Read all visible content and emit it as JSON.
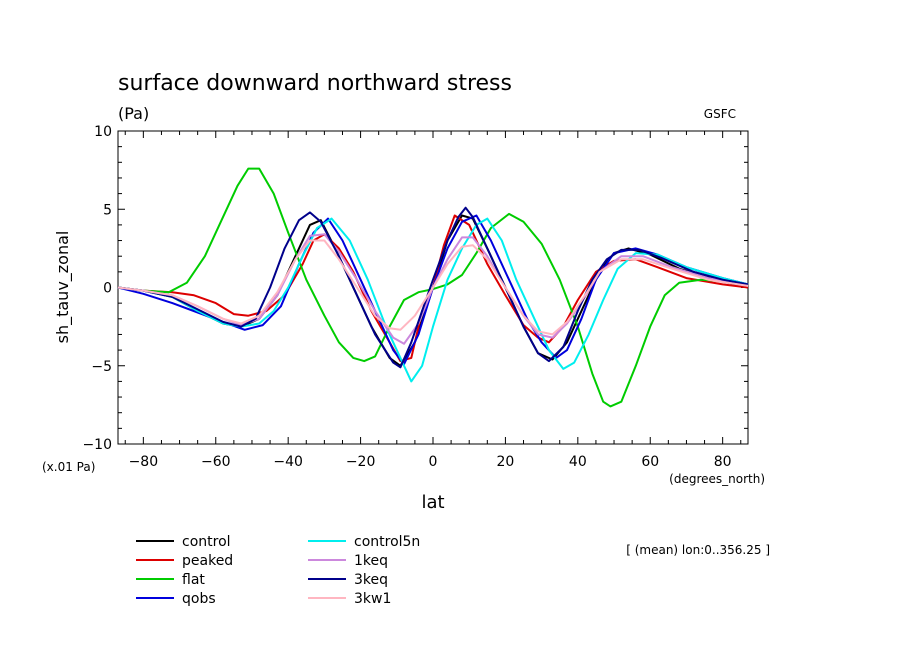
{
  "chart_data": {
    "type": "line",
    "title": "surface downward northward stress",
    "units": "(Pa)",
    "source": "GSFC",
    "ylabel": "sh_tauv_zonal",
    "xlabel": "lat",
    "y_scale_note": "(x.01 Pa)",
    "x_units": "(degrees_north)",
    "footnote": "[ (mean) lon:0..356.25 ]",
    "xlim": [
      -87,
      87
    ],
    "ylim": [
      -10,
      10
    ],
    "x_ticks": [
      -80,
      -60,
      -40,
      -20,
      0,
      20,
      40,
      60,
      80
    ],
    "x_tick_labels": [
      "−80",
      "−60",
      "−40",
      "−20",
      "0",
      "20",
      "40",
      "60",
      "80"
    ],
    "y_ticks": [
      -10,
      -5,
      0,
      5,
      10
    ],
    "y_tick_labels": [
      "−10",
      "−5",
      "0",
      "5",
      "10"
    ],
    "series": [
      {
        "name": "control",
        "color": "#000000",
        "points": [
          [
            -87,
            0
          ],
          [
            -80,
            -0.2
          ],
          [
            -72,
            -0.6
          ],
          [
            -65,
            -1.5
          ],
          [
            -58,
            -2.3
          ],
          [
            -53,
            -2.5
          ],
          [
            -48,
            -2.0
          ],
          [
            -43,
            -0.5
          ],
          [
            -38,
            2.0
          ],
          [
            -34,
            4.0
          ],
          [
            -31,
            4.3
          ],
          [
            -27,
            2.5
          ],
          [
            -22,
            0
          ],
          [
            -17,
            -2.5
          ],
          [
            -12,
            -4.5
          ],
          [
            -9,
            -5.0
          ],
          [
            -5,
            -3.5
          ],
          [
            0,
            0
          ],
          [
            4,
            3.0
          ],
          [
            8,
            4.6
          ],
          [
            11,
            4.4
          ],
          [
            15,
            2.5
          ],
          [
            20,
            0
          ],
          [
            25,
            -2.5
          ],
          [
            29,
            -4.2
          ],
          [
            33,
            -4.6
          ],
          [
            37,
            -3.5
          ],
          [
            42,
            -1.0
          ],
          [
            46,
            1.0
          ],
          [
            50,
            2.2
          ],
          [
            54,
            2.5
          ],
          [
            60,
            2.1
          ],
          [
            68,
            1.2
          ],
          [
            78,
            0.5
          ],
          [
            87,
            0
          ]
        ]
      },
      {
        "name": "peaked",
        "color": "#dd0000",
        "points": [
          [
            -87,
            0
          ],
          [
            -80,
            -0.2
          ],
          [
            -72,
            -0.3
          ],
          [
            -66,
            -0.5
          ],
          [
            -60,
            -1.0
          ],
          [
            -55,
            -1.7
          ],
          [
            -51,
            -1.8
          ],
          [
            -46,
            -1.5
          ],
          [
            -41,
            -0.5
          ],
          [
            -36,
            1.5
          ],
          [
            -33,
            3.0
          ],
          [
            -30,
            3.4
          ],
          [
            -26,
            2.5
          ],
          [
            -22,
            1.0
          ],
          [
            -17,
            -1.5
          ],
          [
            -12,
            -3.5
          ],
          [
            -9,
            -4.7
          ],
          [
            -6,
            -4.5
          ],
          [
            -3,
            -1.5
          ],
          [
            0,
            0
          ],
          [
            3,
            2.7
          ],
          [
            6,
            4.6
          ],
          [
            10,
            4.0
          ],
          [
            15,
            1.5
          ],
          [
            20,
            -0.5
          ],
          [
            25,
            -2.4
          ],
          [
            29,
            -3.2
          ],
          [
            32,
            -3.5
          ],
          [
            36,
            -2.5
          ],
          [
            40,
            -0.8
          ],
          [
            45,
            1.0
          ],
          [
            50,
            1.7
          ],
          [
            56,
            1.8
          ],
          [
            62,
            1.3
          ],
          [
            70,
            0.6
          ],
          [
            80,
            0.2
          ],
          [
            87,
            0
          ]
        ]
      },
      {
        "name": "flat",
        "color": "#00cc00",
        "points": [
          [
            -87,
            0
          ],
          [
            -80,
            -0.2
          ],
          [
            -73,
            -0.3
          ],
          [
            -68,
            0.3
          ],
          [
            -63,
            2.0
          ],
          [
            -58,
            4.5
          ],
          [
            -54,
            6.5
          ],
          [
            -51,
            7.6
          ],
          [
            -48,
            7.6
          ],
          [
            -44,
            6.0
          ],
          [
            -40,
            3.5
          ],
          [
            -35,
            0.5
          ],
          [
            -30,
            -1.8
          ],
          [
            -26,
            -3.5
          ],
          [
            -22,
            -4.5
          ],
          [
            -19,
            -4.7
          ],
          [
            -16,
            -4.4
          ],
          [
            -12,
            -2.5
          ],
          [
            -8,
            -0.8
          ],
          [
            -4,
            -0.3
          ],
          [
            0,
            -0.1
          ],
          [
            4,
            0.2
          ],
          [
            8,
            0.8
          ],
          [
            12,
            2.2
          ],
          [
            16,
            3.8
          ],
          [
            21,
            4.7
          ],
          [
            25,
            4.2
          ],
          [
            30,
            2.8
          ],
          [
            35,
            0.5
          ],
          [
            40,
            -2.5
          ],
          [
            44,
            -5.5
          ],
          [
            47,
            -7.3
          ],
          [
            49,
            -7.6
          ],
          [
            52,
            -7.3
          ],
          [
            56,
            -5.0
          ],
          [
            60,
            -2.5
          ],
          [
            64,
            -0.5
          ],
          [
            68,
            0.3
          ],
          [
            74,
            0.5
          ],
          [
            80,
            0.4
          ],
          [
            87,
            0.2
          ]
        ]
      },
      {
        "name": "qobs",
        "color": "#0000dd",
        "points": [
          [
            -87,
            0
          ],
          [
            -80,
            -0.4
          ],
          [
            -72,
            -1.0
          ],
          [
            -65,
            -1.6
          ],
          [
            -58,
            -2.2
          ],
          [
            -52,
            -2.7
          ],
          [
            -47,
            -2.4
          ],
          [
            -42,
            -1.2
          ],
          [
            -37,
            1.5
          ],
          [
            -33,
            3.5
          ],
          [
            -29,
            4.4
          ],
          [
            -25,
            3.0
          ],
          [
            -20,
            0.5
          ],
          [
            -15,
            -2.0
          ],
          [
            -11,
            -4.0
          ],
          [
            -8,
            -4.9
          ],
          [
            -4,
            -3.0
          ],
          [
            0,
            0
          ],
          [
            4,
            2.5
          ],
          [
            8,
            4.2
          ],
          [
            12,
            4.6
          ],
          [
            16,
            3.0
          ],
          [
            21,
            0.5
          ],
          [
            26,
            -2.0
          ],
          [
            30,
            -3.5
          ],
          [
            34,
            -4.5
          ],
          [
            37,
            -4.0
          ],
          [
            41,
            -2.0
          ],
          [
            45,
            0.5
          ],
          [
            50,
            2.2
          ],
          [
            56,
            2.5
          ],
          [
            62,
            2.1
          ],
          [
            70,
            1.3
          ],
          [
            80,
            0.6
          ],
          [
            87,
            0.2
          ]
        ]
      },
      {
        "name": "control5n",
        "color": "#00eeee",
        "points": [
          [
            -87,
            0
          ],
          [
            -80,
            -0.2
          ],
          [
            -72,
            -0.6
          ],
          [
            -65,
            -1.5
          ],
          [
            -58,
            -2.3
          ],
          [
            -53,
            -2.5
          ],
          [
            -48,
            -2.3
          ],
          [
            -44,
            -1.5
          ],
          [
            -40,
            0
          ],
          [
            -36,
            2.0
          ],
          [
            -32,
            3.8
          ],
          [
            -28,
            4.4
          ],
          [
            -23,
            3.0
          ],
          [
            -18,
            0.5
          ],
          [
            -13,
            -2.5
          ],
          [
            -9,
            -4.5
          ],
          [
            -6,
            -6.0
          ],
          [
            -3,
            -5.0
          ],
          [
            0,
            -2.5
          ],
          [
            4,
            0.5
          ],
          [
            8,
            2.5
          ],
          [
            12,
            4.0
          ],
          [
            15,
            4.4
          ],
          [
            19,
            3.0
          ],
          [
            23,
            0.5
          ],
          [
            28,
            -2.0
          ],
          [
            32,
            -4.0
          ],
          [
            36,
            -5.2
          ],
          [
            39,
            -4.8
          ],
          [
            43,
            -3.0
          ],
          [
            47,
            -0.8
          ],
          [
            51,
            1.2
          ],
          [
            56,
            2.2
          ],
          [
            62,
            2.1
          ],
          [
            70,
            1.3
          ],
          [
            80,
            0.6
          ],
          [
            87,
            0.2
          ]
        ]
      },
      {
        "name": "1keq",
        "color": "#cc88dd",
        "points": [
          [
            -87,
            0
          ],
          [
            -80,
            -0.2
          ],
          [
            -72,
            -0.5
          ],
          [
            -65,
            -1.2
          ],
          [
            -58,
            -2.0
          ],
          [
            -53,
            -2.4
          ],
          [
            -48,
            -2.0
          ],
          [
            -43,
            -0.5
          ],
          [
            -38,
            1.8
          ],
          [
            -34,
            3.3
          ],
          [
            -30,
            3.4
          ],
          [
            -26,
            2.3
          ],
          [
            -21,
            0.5
          ],
          [
            -16,
            -1.5
          ],
          [
            -11,
            -3.2
          ],
          [
            -8,
            -3.6
          ],
          [
            -4,
            -2.3
          ],
          [
            0,
            0
          ],
          [
            4,
            1.8
          ],
          [
            8,
            3.2
          ],
          [
            11,
            3.2
          ],
          [
            15,
            2.0
          ],
          [
            20,
            0
          ],
          [
            25,
            -1.8
          ],
          [
            29,
            -3.0
          ],
          [
            33,
            -3.2
          ],
          [
            37,
            -2.3
          ],
          [
            42,
            -0.6
          ],
          [
            46,
            1.0
          ],
          [
            52,
            2.0
          ],
          [
            58,
            2.0
          ],
          [
            66,
            1.3
          ],
          [
            76,
            0.6
          ],
          [
            87,
            0.1
          ]
        ]
      },
      {
        "name": "3keq",
        "color": "#00008b",
        "points": [
          [
            -87,
            0
          ],
          [
            -80,
            -0.2
          ],
          [
            -72,
            -0.6
          ],
          [
            -65,
            -1.4
          ],
          [
            -58,
            -2.2
          ],
          [
            -53,
            -2.5
          ],
          [
            -49,
            -2.0
          ],
          [
            -45,
            0
          ],
          [
            -41,
            2.5
          ],
          [
            -37,
            4.3
          ],
          [
            -34,
            4.8
          ],
          [
            -31,
            4.2
          ],
          [
            -26,
            2.0
          ],
          [
            -21,
            -0.5
          ],
          [
            -16,
            -3.0
          ],
          [
            -11,
            -4.8
          ],
          [
            -9,
            -5.1
          ],
          [
            -6,
            -3.5
          ],
          [
            -3,
            -1.5
          ],
          [
            0,
            0.5
          ],
          [
            4,
            3.0
          ],
          [
            7,
            4.5
          ],
          [
            9,
            5.1
          ],
          [
            11,
            4.5
          ],
          [
            15,
            2.5
          ],
          [
            20,
            0
          ],
          [
            25,
            -2.5
          ],
          [
            29,
            -4.2
          ],
          [
            32,
            -4.7
          ],
          [
            36,
            -3.8
          ],
          [
            40,
            -1.5
          ],
          [
            44,
            0.5
          ],
          [
            48,
            1.8
          ],
          [
            52,
            2.4
          ],
          [
            57,
            2.4
          ],
          [
            63,
            1.9
          ],
          [
            72,
            1.0
          ],
          [
            80,
            0.5
          ],
          [
            87,
            0.2
          ]
        ]
      },
      {
        "name": "3kw1",
        "color": "#ffb6c1",
        "points": [
          [
            -87,
            0
          ],
          [
            -80,
            -0.2
          ],
          [
            -72,
            -0.5
          ],
          [
            -65,
            -1.2
          ],
          [
            -58,
            -2.0
          ],
          [
            -53,
            -2.3
          ],
          [
            -48,
            -1.8
          ],
          [
            -43,
            -0.3
          ],
          [
            -38,
            1.8
          ],
          [
            -34,
            3.0
          ],
          [
            -30,
            3.0
          ],
          [
            -26,
            1.8
          ],
          [
            -21,
            0
          ],
          [
            -16,
            -1.8
          ],
          [
            -12,
            -2.6
          ],
          [
            -9,
            -2.7
          ],
          [
            -5,
            -1.8
          ],
          [
            0,
            0
          ],
          [
            4,
            1.5
          ],
          [
            8,
            2.6
          ],
          [
            11,
            2.7
          ],
          [
            15,
            1.8
          ],
          [
            20,
            0
          ],
          [
            25,
            -1.8
          ],
          [
            29,
            -2.8
          ],
          [
            33,
            -3.0
          ],
          [
            37,
            -2.2
          ],
          [
            42,
            -0.5
          ],
          [
            46,
            1.0
          ],
          [
            52,
            1.8
          ],
          [
            58,
            1.8
          ],
          [
            66,
            1.2
          ],
          [
            76,
            0.5
          ],
          [
            87,
            0.1
          ]
        ]
      }
    ]
  }
}
